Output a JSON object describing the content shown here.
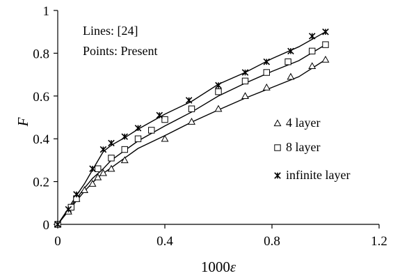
{
  "chart_data": {
    "type": "line",
    "title": "",
    "xlabel_prefix": "1000",
    "xlabel_symbol": "ε",
    "ylabel": "F",
    "xlim": [
      0,
      1.2
    ],
    "ylim": [
      0,
      1
    ],
    "xticks": [
      "0",
      "0.4",
      "0.8",
      "1.2"
    ],
    "yticks": [
      "0",
      "0.2",
      "0.4",
      "0.6",
      "0.8",
      "1"
    ],
    "grid": false,
    "annotations": [
      "Lines: [24]",
      "Points: Present"
    ],
    "legend_position": "right-middle",
    "series": [
      {
        "name": "4 layer",
        "marker": "triangle",
        "line_x": [
          0,
          0.035,
          0.07,
          0.1,
          0.13,
          0.16,
          0.2,
          0.25,
          0.3,
          0.4,
          0.5,
          0.6,
          0.7,
          0.8,
          0.9,
          1.0
        ],
        "line_y": [
          0,
          0.055,
          0.11,
          0.155,
          0.195,
          0.23,
          0.265,
          0.31,
          0.355,
          0.415,
          0.478,
          0.535,
          0.59,
          0.64,
          0.69,
          0.77
        ],
        "points_x": [
          0,
          0.04,
          0.07,
          0.1,
          0.13,
          0.15,
          0.17,
          0.2,
          0.25,
          0.4,
          0.5,
          0.6,
          0.7,
          0.78,
          0.87,
          0.95,
          1.0
        ],
        "points_y": [
          0,
          0.06,
          0.12,
          0.16,
          0.19,
          0.22,
          0.24,
          0.26,
          0.3,
          0.4,
          0.48,
          0.54,
          0.6,
          0.64,
          0.69,
          0.74,
          0.77
        ]
      },
      {
        "name": "8 layer",
        "marker": "square",
        "line_x": [
          0,
          0.035,
          0.07,
          0.1,
          0.13,
          0.17,
          0.2,
          0.25,
          0.3,
          0.4,
          0.5,
          0.6,
          0.7,
          0.8,
          0.9,
          1.0
        ],
        "line_y": [
          0,
          0.06,
          0.12,
          0.17,
          0.215,
          0.26,
          0.3,
          0.345,
          0.39,
          0.46,
          0.525,
          0.6,
          0.66,
          0.715,
          0.765,
          0.84
        ],
        "points_x": [
          0,
          0.05,
          0.07,
          0.15,
          0.2,
          0.25,
          0.3,
          0.35,
          0.4,
          0.5,
          0.6,
          0.7,
          0.78,
          0.86,
          0.95,
          1.0
        ],
        "points_y": [
          0,
          0.08,
          0.12,
          0.26,
          0.31,
          0.35,
          0.4,
          0.44,
          0.49,
          0.54,
          0.62,
          0.67,
          0.71,
          0.76,
          0.81,
          0.84
        ]
      },
      {
        "name": "infinite layer",
        "marker": "asterisk",
        "line_x": [
          0,
          0.035,
          0.07,
          0.1,
          0.13,
          0.17,
          0.2,
          0.25,
          0.3,
          0.4,
          0.5,
          0.6,
          0.7,
          0.8,
          0.9,
          1.0
        ],
        "line_y": [
          0,
          0.065,
          0.135,
          0.19,
          0.255,
          0.34,
          0.37,
          0.405,
          0.445,
          0.515,
          0.575,
          0.655,
          0.71,
          0.775,
          0.83,
          0.9
        ],
        "points_x": [
          0,
          0.04,
          0.07,
          0.13,
          0.17,
          0.2,
          0.25,
          0.3,
          0.38,
          0.49,
          0.6,
          0.7,
          0.78,
          0.87,
          0.95,
          1.0
        ],
        "points_y": [
          0,
          0.07,
          0.14,
          0.26,
          0.35,
          0.38,
          0.41,
          0.45,
          0.51,
          0.58,
          0.65,
          0.71,
          0.76,
          0.81,
          0.88,
          0.9
        ]
      }
    ]
  }
}
